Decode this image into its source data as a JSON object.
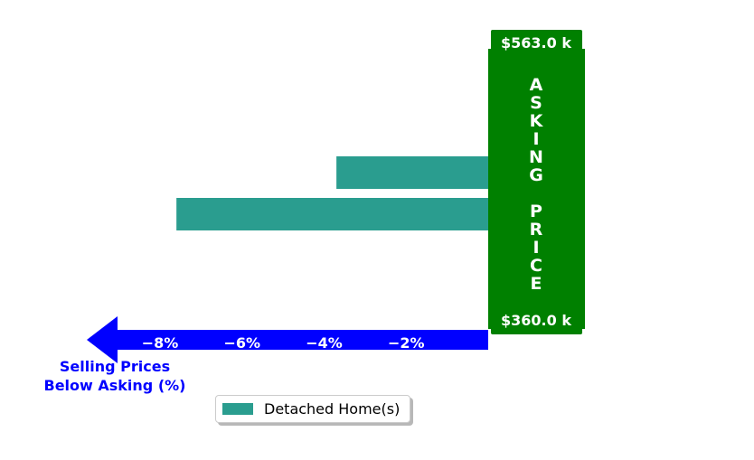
{
  "chart_data": {
    "type": "bar",
    "orientation": "horizontal",
    "series": [
      {
        "name": "Detached Home(s)",
        "values": [
          -3.7,
          -7.6
        ],
        "color": "#2a9d8f"
      }
    ],
    "xlim": [
      -9,
      0
    ],
    "xticks": [
      -8,
      -6,
      -4,
      -2
    ],
    "xtick_labels": [
      "−8%",
      "−6%",
      "−4%",
      "−2%"
    ],
    "xlabel": "Selling Prices\nBelow Asking (%)",
    "xlabel_lines": [
      "Selling Prices",
      "Below Asking (%)"
    ],
    "axis_color": "#0000ff",
    "asking_box": {
      "letters": [
        "A",
        "S",
        "K",
        "I",
        "N",
        "G",
        "",
        "P",
        "R",
        "I",
        "C",
        "E"
      ],
      "top_label": "$563.0 k",
      "bottom_label": "$360.0 k",
      "color": "#008000"
    },
    "legend": {
      "label": "Detached Home(s)",
      "placement": "lower-center"
    }
  }
}
